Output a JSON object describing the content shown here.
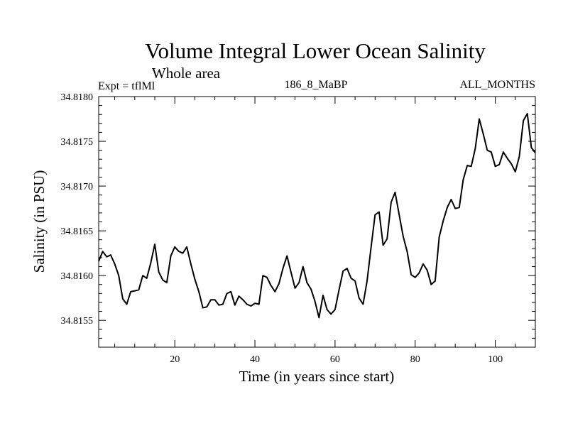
{
  "chart_data": {
    "type": "line",
    "title": "Volume Integral Lower Ocean Salinity",
    "subtitle": "Whole area",
    "left_label": "Expt = tflMl",
    "center_label": "186_8_MaBP",
    "right_label": "ALL_MONTHS",
    "xlabel": "Time (in years since start)",
    "ylabel": "Salinity (in PSU)",
    "xlim": [
      1,
      110
    ],
    "ylim": [
      34.8152,
      34.818
    ],
    "xticks": [
      20,
      40,
      60,
      80,
      100
    ],
    "xtick_labels": [
      "20",
      "40",
      "60",
      "80",
      "100"
    ],
    "yticks": [
      34.8155,
      34.816,
      34.8165,
      34.817,
      34.8175,
      34.818
    ],
    "ytick_labels": [
      "34.8155",
      "34.8160",
      "34.8165",
      "34.8170",
      "34.8175",
      "34.8180"
    ],
    "series": [
      {
        "name": "Salinity",
        "x": [
          1,
          2,
          3,
          4,
          5,
          6,
          7,
          8,
          9,
          10,
          11,
          12,
          13,
          14,
          15,
          16,
          17,
          18,
          19,
          20,
          21,
          22,
          23,
          24,
          25,
          26,
          27,
          28,
          29,
          30,
          31,
          32,
          33,
          34,
          35,
          36,
          37,
          38,
          39,
          40,
          41,
          42,
          43,
          44,
          45,
          46,
          47,
          48,
          49,
          50,
          51,
          52,
          53,
          54,
          55,
          56,
          57,
          58,
          59,
          60,
          61,
          62,
          63,
          64,
          65,
          66,
          67,
          68,
          69,
          70,
          71,
          72,
          73,
          74,
          75,
          76,
          77,
          78,
          79,
          80,
          81,
          82,
          83,
          84,
          85,
          86,
          87,
          88,
          89,
          90,
          91,
          92,
          93,
          94,
          95,
          96,
          97,
          98,
          99,
          100,
          101,
          102,
          103,
          104,
          105,
          106,
          107,
          108,
          109,
          110
        ],
        "values": [
          34.81616,
          34.81627,
          34.81621,
          34.81623,
          34.81613,
          34.816,
          34.81574,
          34.81568,
          34.81582,
          34.81583,
          34.81584,
          34.816,
          34.81597,
          34.81614,
          34.81635,
          34.81604,
          34.81595,
          34.81592,
          34.81622,
          34.81632,
          34.81627,
          34.81625,
          34.81632,
          34.81613,
          34.81596,
          34.81582,
          34.81564,
          34.81565,
          34.81573,
          34.81573,
          34.81567,
          34.81568,
          34.8158,
          34.81582,
          34.81567,
          34.81577,
          34.81573,
          34.81568,
          34.81566,
          34.81569,
          34.81568,
          34.816,
          34.81598,
          34.81589,
          34.81582,
          34.81591,
          34.81608,
          34.81622,
          34.81604,
          34.81586,
          34.81592,
          34.8161,
          34.81592,
          34.81585,
          34.81571,
          34.81553,
          34.81578,
          34.81562,
          34.81557,
          34.81562,
          34.81584,
          34.81605,
          34.81608,
          34.81597,
          34.81594,
          34.81575,
          34.81568,
          34.81594,
          34.81632,
          34.81668,
          34.81671,
          34.81634,
          34.81641,
          34.81682,
          34.81693,
          34.81668,
          34.81644,
          34.81627,
          34.81601,
          34.81598,
          34.81603,
          34.81613,
          34.81606,
          34.8159,
          34.81594,
          34.81643,
          34.81661,
          34.81676,
          34.81685,
          34.81675,
          34.81676,
          34.81707,
          34.81723,
          34.81722,
          34.81742,
          34.81775,
          34.81758,
          34.8174,
          34.81738,
          34.81722,
          34.81724,
          34.81738,
          34.81731,
          34.81725,
          34.81716,
          34.81733,
          34.81773,
          34.81781,
          34.81743,
          34.81737
        ]
      }
    ]
  }
}
